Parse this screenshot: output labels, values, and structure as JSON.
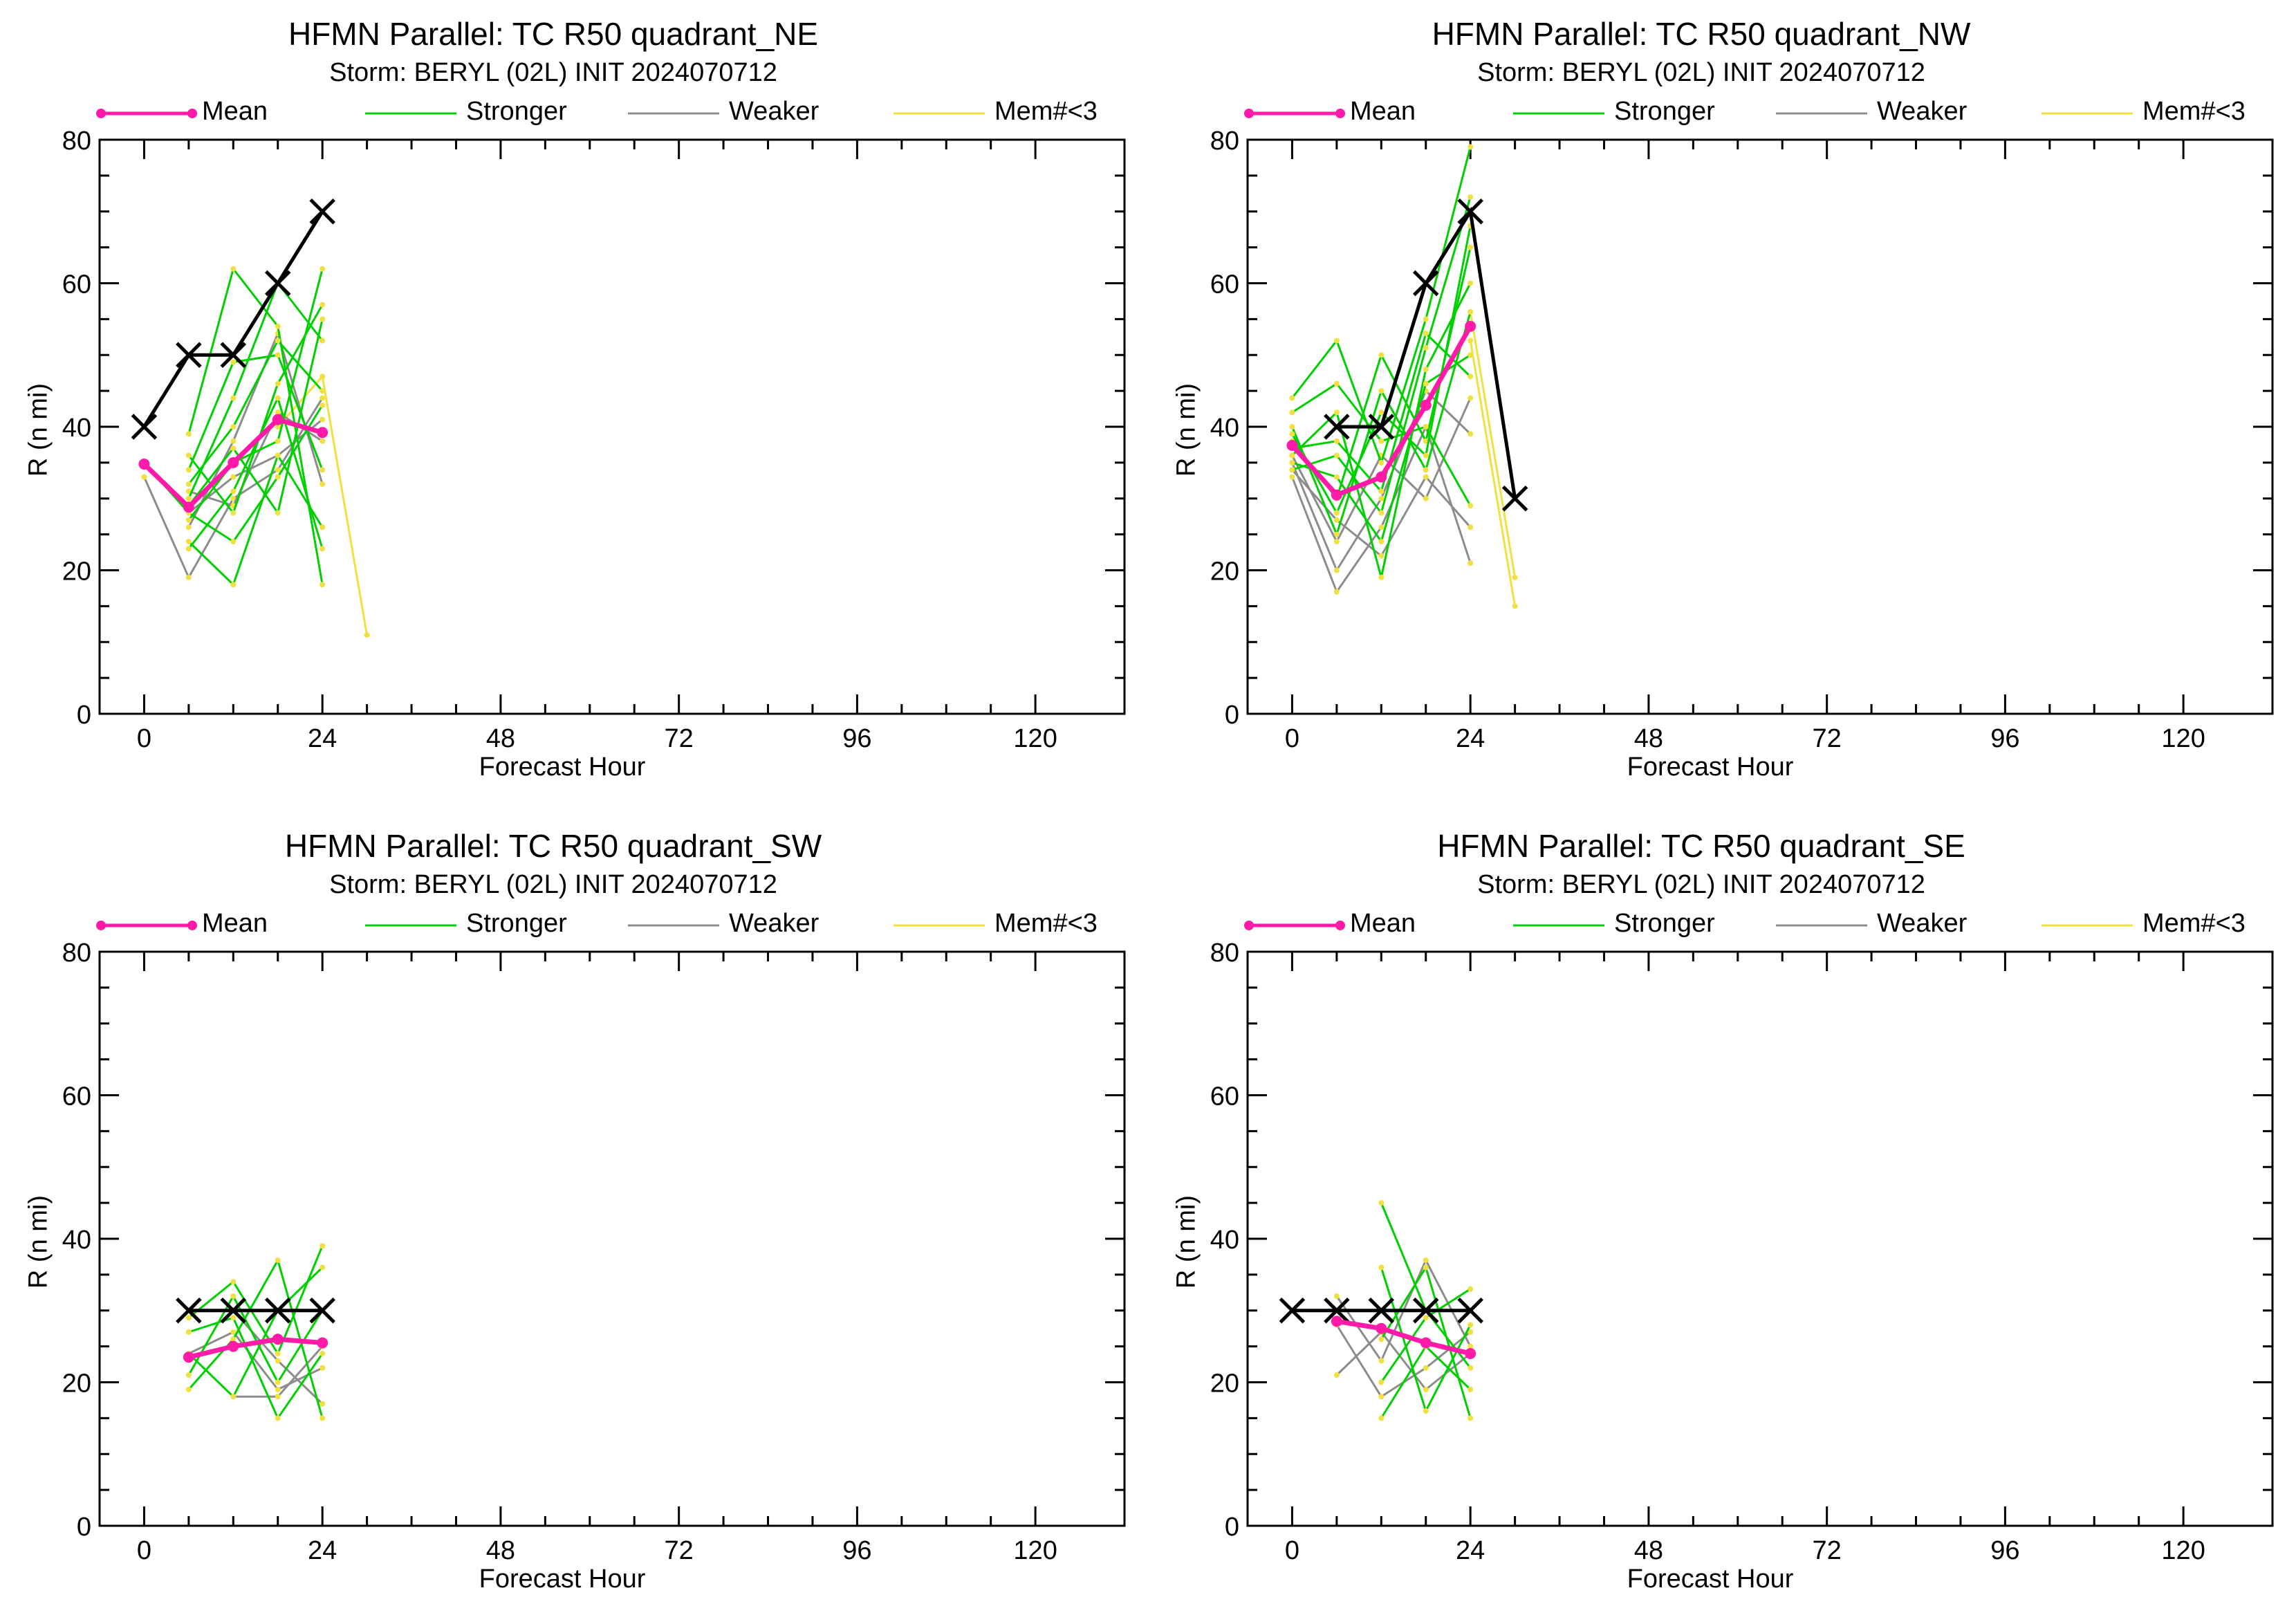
{
  "figure": {
    "legend": {
      "mean": "Mean",
      "stronger": "Stronger",
      "weaker": "Weaker",
      "mem": "Mem#<3"
    },
    "colors": {
      "mean": "#ff1aa8",
      "stronger": "#00d000",
      "weaker": "#8c8c8c",
      "mem": "#f0e040",
      "best_track": "#000000"
    }
  },
  "chart_data": [
    {
      "type": "line",
      "title": "HFMN Parallel: TC  R50 quadrant_NE",
      "subtitle": "Storm: BERYL (02L) INIT 2024070712",
      "xlabel": "Forecast Hour",
      "ylabel": "R (n mi)",
      "xlim": [
        -6,
        132
      ],
      "ylim": [
        0,
        80
      ],
      "xticks": [
        "0",
        "24",
        "48",
        "72",
        "96",
        "120"
      ],
      "yticks": [
        "0",
        "20",
        "40",
        "60",
        "80"
      ],
      "best_track": {
        "x": [
          0,
          6,
          12,
          18,
          24
        ],
        "y": [
          40,
          50,
          50,
          60,
          70
        ]
      },
      "mean": {
        "x": [
          0,
          6,
          12,
          18,
          24
        ],
        "y": [
          34.8,
          28.8,
          35,
          41,
          39.2
        ]
      },
      "stronger": [
        [
          [
            6,
            39
          ],
          [
            12,
            62
          ],
          [
            18,
            54
          ],
          [
            24,
            18
          ]
        ],
        [
          [
            6,
            30
          ],
          [
            12,
            44
          ],
          [
            18,
            60
          ],
          [
            24,
            52
          ]
        ],
        [
          [
            6,
            24
          ],
          [
            12,
            18
          ],
          [
            18,
            36
          ],
          [
            24,
            26
          ]
        ],
        [
          [
            6,
            36
          ],
          [
            12,
            28
          ],
          [
            18,
            46
          ],
          [
            24,
            57
          ]
        ],
        [
          [
            6,
            32
          ],
          [
            12,
            40
          ],
          [
            18,
            52
          ],
          [
            24,
            45
          ]
        ],
        [
          [
            6,
            27
          ],
          [
            12,
            35
          ],
          [
            18,
            38
          ],
          [
            24,
            62
          ]
        ],
        [
          [
            6,
            23
          ],
          [
            12,
            31
          ],
          [
            18,
            44
          ],
          [
            24,
            23
          ]
        ],
        [
          [
            6,
            34
          ],
          [
            12,
            49
          ],
          [
            18,
            50
          ],
          [
            24,
            34
          ]
        ],
        [
          [
            0,
            35
          ],
          [
            6,
            28
          ],
          [
            12,
            24
          ],
          [
            18,
            33
          ],
          [
            24,
            43
          ]
        ],
        [
          [
            6,
            29
          ],
          [
            12,
            37
          ],
          [
            18,
            28
          ],
          [
            24,
            55
          ]
        ]
      ],
      "weaker": [
        [
          [
            0,
            33
          ],
          [
            6,
            19
          ],
          [
            12,
            30
          ],
          [
            18,
            34
          ],
          [
            24,
            44
          ]
        ],
        [
          [
            6,
            26
          ],
          [
            12,
            38
          ],
          [
            18,
            53
          ],
          [
            24,
            32
          ]
        ],
        [
          [
            6,
            31
          ],
          [
            12,
            29
          ],
          [
            18,
            42
          ],
          [
            24,
            38
          ]
        ],
        [
          [
            6,
            28
          ],
          [
            12,
            33
          ],
          [
            18,
            36
          ],
          [
            24,
            41
          ]
        ]
      ],
      "mem": [
        [
          [
            18,
            40
          ],
          [
            24,
            47
          ],
          [
            30,
            11
          ]
        ]
      ]
    },
    {
      "type": "line",
      "title": "HFMN Parallel: TC  R50 quadrant_NW",
      "subtitle": "Storm: BERYL (02L) INIT 2024070712",
      "xlabel": "Forecast Hour",
      "ylabel": "R (n mi)",
      "xlim": [
        -6,
        132
      ],
      "ylim": [
        0,
        80
      ],
      "xticks": [
        "0",
        "24",
        "48",
        "72",
        "96",
        "120"
      ],
      "yticks": [
        "0",
        "20",
        "40",
        "60",
        "80"
      ],
      "best_track": {
        "x": [
          6,
          12,
          18,
          24,
          30
        ],
        "y": [
          40,
          40,
          60,
          70,
          30
        ]
      },
      "mean": {
        "x": [
          0,
          6,
          12,
          18,
          24
        ],
        "y": [
          37.4,
          30.5,
          33,
          43,
          54
        ]
      },
      "stronger": [
        [
          [
            0,
            44
          ],
          [
            6,
            52
          ],
          [
            12,
            35
          ],
          [
            18,
            55
          ],
          [
            24,
            79
          ]
        ],
        [
          [
            0,
            38
          ],
          [
            6,
            30
          ],
          [
            12,
            50
          ],
          [
            18,
            38
          ],
          [
            24,
            65
          ]
        ],
        [
          [
            0,
            36
          ],
          [
            6,
            42
          ],
          [
            12,
            19
          ],
          [
            18,
            48
          ],
          [
            24,
            60
          ]
        ],
        [
          [
            0,
            40
          ],
          [
            6,
            25
          ],
          [
            12,
            45
          ],
          [
            18,
            34
          ],
          [
            24,
            56
          ]
        ],
        [
          [
            0,
            34
          ],
          [
            6,
            36
          ],
          [
            12,
            28
          ],
          [
            18,
            51
          ],
          [
            24,
            72
          ]
        ],
        [
          [
            0,
            42
          ],
          [
            6,
            46
          ],
          [
            12,
            38
          ],
          [
            18,
            40
          ],
          [
            24,
            29
          ]
        ],
        [
          [
            0,
            35
          ],
          [
            6,
            33
          ],
          [
            12,
            24
          ],
          [
            18,
            46
          ],
          [
            24,
            50
          ]
        ],
        [
          [
            0,
            39
          ],
          [
            6,
            28
          ],
          [
            12,
            42
          ],
          [
            18,
            36
          ],
          [
            24,
            68
          ]
        ],
        [
          [
            0,
            37
          ],
          [
            6,
            38
          ],
          [
            12,
            31
          ],
          [
            18,
            53
          ],
          [
            24,
            47
          ]
        ]
      ],
      "weaker": [
        [
          [
            0,
            33
          ],
          [
            6,
            17
          ],
          [
            12,
            26
          ],
          [
            18,
            40
          ],
          [
            24,
            21
          ]
        ],
        [
          [
            0,
            36
          ],
          [
            6,
            24
          ],
          [
            12,
            36
          ],
          [
            18,
            30
          ],
          [
            24,
            44
          ]
        ],
        [
          [
            0,
            35
          ],
          [
            6,
            20
          ],
          [
            12,
            30
          ],
          [
            18,
            45
          ],
          [
            24,
            39
          ]
        ],
        [
          [
            0,
            34
          ],
          [
            6,
            27
          ],
          [
            12,
            22
          ],
          [
            18,
            33
          ],
          [
            24,
            26
          ]
        ]
      ],
      "mem": [
        [
          [
            24,
            56
          ],
          [
            30,
            19
          ]
        ],
        [
          [
            24,
            52
          ],
          [
            30,
            15
          ]
        ]
      ]
    },
    {
      "type": "line",
      "title": "HFMN Parallel: TC  R50 quadrant_SW",
      "subtitle": "Storm: BERYL (02L) INIT 2024070712",
      "xlabel": "Forecast Hour",
      "ylabel": "R (n mi)",
      "xlim": [
        -6,
        132
      ],
      "ylim": [
        0,
        80
      ],
      "xticks": [
        "0",
        "24",
        "48",
        "72",
        "96",
        "120"
      ],
      "yticks": [
        "0",
        "20",
        "40",
        "60",
        "80"
      ],
      "best_track": {
        "x": [
          6,
          12,
          18,
          24
        ],
        "y": [
          30,
          30,
          30,
          30
        ]
      },
      "mean": {
        "x": [
          6,
          12,
          18,
          24
        ],
        "y": [
          23.5,
          25,
          26,
          25.5
        ]
      },
      "stronger": [
        [
          [
            6,
            29
          ],
          [
            12,
            34
          ],
          [
            18,
            24
          ],
          [
            24,
            39
          ]
        ],
        [
          [
            6,
            19
          ],
          [
            12,
            26
          ],
          [
            18,
            37
          ],
          [
            24,
            15
          ]
        ],
        [
          [
            6,
            24
          ],
          [
            12,
            18
          ],
          [
            18,
            30
          ],
          [
            24,
            36
          ]
        ],
        [
          [
            6,
            27
          ],
          [
            12,
            29
          ],
          [
            18,
            15
          ],
          [
            24,
            24
          ]
        ],
        [
          [
            6,
            21
          ],
          [
            12,
            32
          ],
          [
            18,
            20
          ],
          [
            24,
            30
          ]
        ]
      ],
      "weaker": [
        [
          [
            6,
            24
          ],
          [
            12,
            27
          ],
          [
            18,
            19
          ],
          [
            24,
            22
          ]
        ],
        [
          [
            12,
            18
          ],
          [
            18,
            18
          ],
          [
            24,
            25
          ]
        ],
        [
          [
            12,
            30
          ],
          [
            18,
            23
          ],
          [
            24,
            17
          ]
        ]
      ],
      "mem": []
    },
    {
      "type": "line",
      "title": "HFMN Parallel: TC  R50 quadrant_SE",
      "subtitle": "Storm: BERYL (02L) INIT 2024070712",
      "xlabel": "Forecast Hour",
      "ylabel": "R (n mi)",
      "xlim": [
        -6,
        132
      ],
      "ylim": [
        0,
        80
      ],
      "xticks": [
        "0",
        "24",
        "48",
        "72",
        "96",
        "120"
      ],
      "yticks": [
        "0",
        "20",
        "40",
        "60",
        "80"
      ],
      "best_track": {
        "x": [
          0,
          6,
          12,
          18,
          24
        ],
        "y": [
          30,
          30,
          30,
          30,
          30
        ]
      },
      "mean": {
        "x": [
          6,
          12,
          18,
          24
        ],
        "y": [
          28.5,
          27.5,
          25.5,
          24
        ]
      },
      "stronger": [
        [
          [
            12,
            45
          ],
          [
            18,
            30
          ],
          [
            24,
            22
          ]
        ],
        [
          [
            12,
            36
          ],
          [
            18,
            16
          ],
          [
            24,
            28
          ]
        ],
        [
          [
            12,
            15
          ],
          [
            18,
            25
          ],
          [
            24,
            19
          ]
        ],
        [
          [
            12,
            26
          ],
          [
            18,
            36
          ],
          [
            24,
            15
          ]
        ],
        [
          [
            12,
            20
          ],
          [
            18,
            29
          ],
          [
            24,
            33
          ]
        ]
      ],
      "weaker": [
        [
          [
            6,
            32
          ],
          [
            12,
            23
          ],
          [
            18,
            37
          ],
          [
            24,
            25
          ]
        ],
        [
          [
            6,
            28
          ],
          [
            12,
            18
          ],
          [
            18,
            22
          ],
          [
            24,
            27
          ]
        ],
        [
          [
            6,
            21
          ],
          [
            12,
            27
          ],
          [
            18,
            19
          ],
          [
            24,
            24
          ]
        ]
      ],
      "mem": []
    }
  ]
}
